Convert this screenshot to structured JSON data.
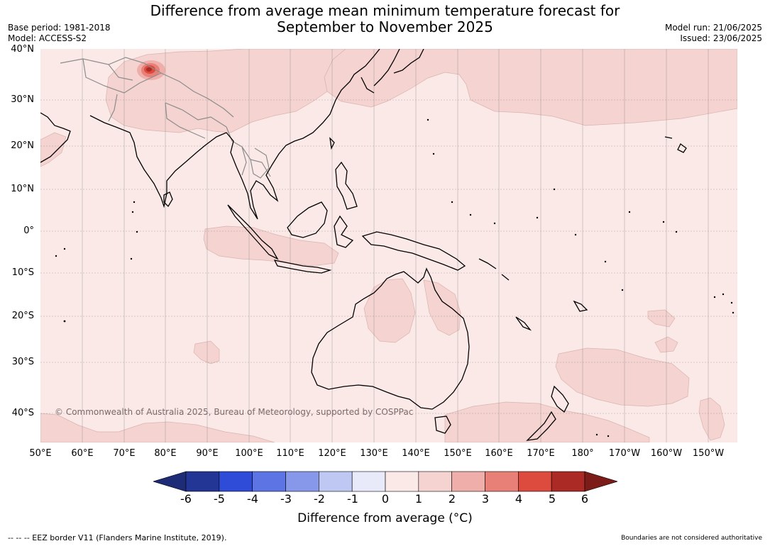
{
  "title": {
    "line1": "Difference from average mean minimum temperature forecast for",
    "line2": "September to November 2025"
  },
  "meta": {
    "base_period": "Base period: 1981-2018",
    "model": "Model: ACCESS-S2",
    "model_run": "Model run: 21/06/2025",
    "issued": "Issued: 23/06/2025"
  },
  "map": {
    "latitude_labels": [
      "40°N",
      "30°N",
      "20°N",
      "10°N",
      "0°",
      "10°S",
      "20°S",
      "30°S",
      "40°S"
    ],
    "longitude_labels": [
      "50°E",
      "60°E",
      "70°E",
      "80°E",
      "90°E",
      "100°E",
      "110°E",
      "120°E",
      "130°E",
      "140°E",
      "150°E",
      "160°E",
      "170°E",
      "180°",
      "170°W",
      "160°W",
      "150°W"
    ],
    "copyright": "© Commonwealth of Australia 2025, Bureau of Meteorology, supported by COSPPac",
    "colors": {
      "background_anomaly_0_1": "#fbe9e7",
      "anomaly_1_2": "#f4d3d0",
      "coast": "#000000",
      "borders": "#8c8c8c",
      "grid": "#7f7f7f"
    }
  },
  "colorbar": {
    "label": "Difference from average (°C)",
    "ticks": [
      "-6",
      "-5",
      "-4",
      "-3",
      "-2",
      "-1",
      "0",
      "1",
      "2",
      "3",
      "4",
      "5",
      "6"
    ],
    "bin_colors": [
      "#233695",
      "#2f4cd8",
      "#5c74e4",
      "#8797ea",
      "#bfc7f3",
      "#e8eafa",
      "#fbe9e7",
      "#f4d3d0",
      "#efaea9",
      "#e88077",
      "#dd4a3e",
      "#ac2a25"
    ],
    "under_color": "#1e2c78",
    "over_color": "#7c1c18"
  },
  "footer": {
    "eez": "-- -- -- EEZ border V11 (Flanders Marine Institute, 2019).",
    "disclaimer": "Boundaries are not considered authoritative"
  }
}
